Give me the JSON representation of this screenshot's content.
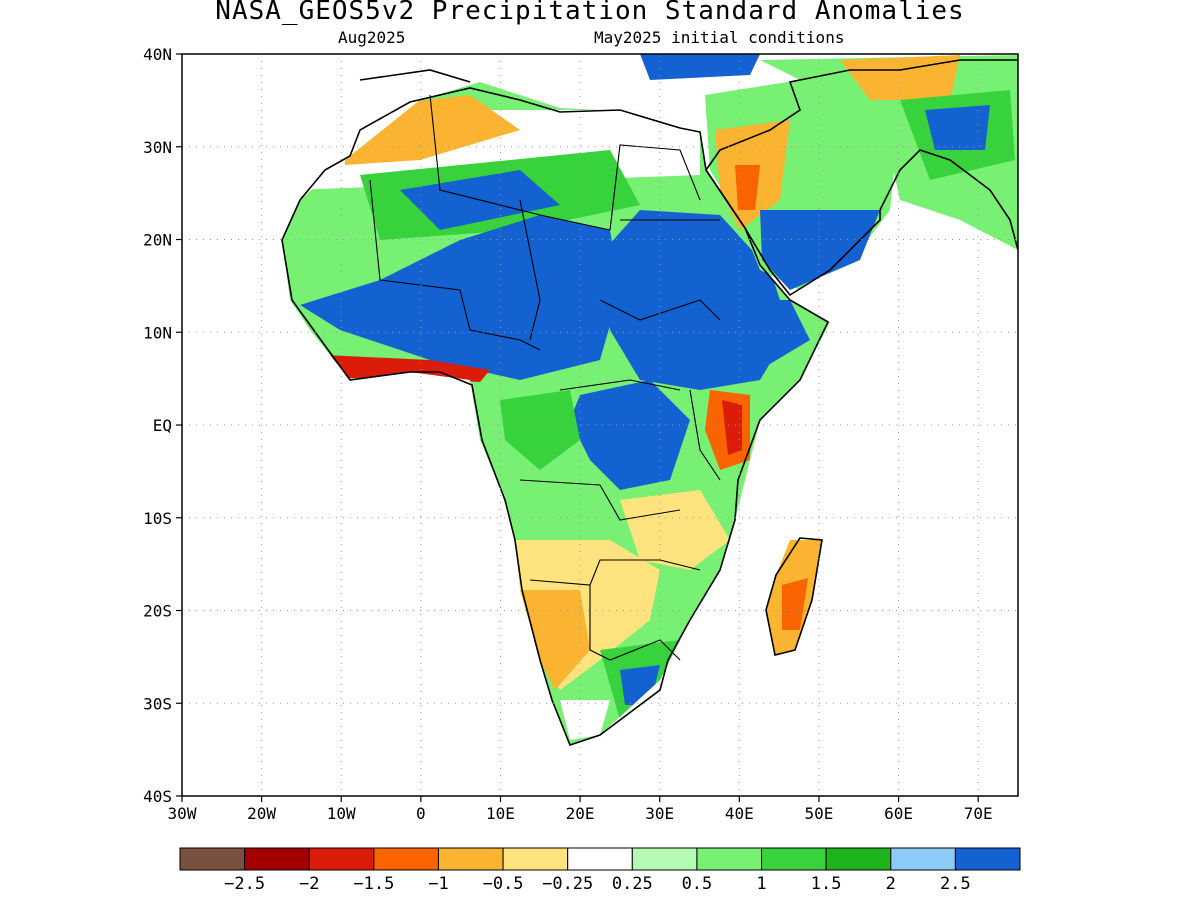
{
  "title": "NASA_GEOS5v2 Precipitation Standard Anomalies",
  "subtitle_left": "Aug2025",
  "subtitle_right": "May2025 initial conditions",
  "map": {
    "lon_range": [
      -30,
      75
    ],
    "lat_range": [
      -40,
      40
    ],
    "lat_labels": [
      "40N",
      "30N",
      "20N",
      "10N",
      "EQ",
      "10S",
      "20S",
      "30S",
      "40S"
    ],
    "lon_labels": [
      "30W",
      "20W",
      "10W",
      "0",
      "10E",
      "20E",
      "30E",
      "40E",
      "50E",
      "60E",
      "70E"
    ],
    "grid_style": "dotted"
  },
  "colorbar": {
    "colors": [
      "#7a5040",
      "#a50000",
      "#dc1c0a",
      "#fa6400",
      "#fab432",
      "#fee37e",
      "#ffffff",
      "#b4fab4",
      "#78f073",
      "#37d23c",
      "#1eb41e",
      "#8ccbf5",
      "#1461d2"
    ],
    "labels": [
      "-2.5",
      "-2",
      "-1.5",
      "-1",
      "-0.5",
      "-0.25",
      "0.25",
      "0.5",
      "1",
      "1.5",
      "2",
      "2.5"
    ]
  },
  "regions": [
    {
      "name": "sahel-wet-west",
      "color": "#1461d2"
    },
    {
      "name": "sahel-wet-east",
      "color": "#1461d2"
    },
    {
      "name": "congo-wet",
      "color": "#1461d2"
    },
    {
      "name": "ethiopia-wet",
      "color": "#1461d2"
    },
    {
      "name": "east-africa-dry",
      "color": "#dc1c0a"
    },
    {
      "name": "southern-africa-dry",
      "color": "#fee37e"
    },
    {
      "name": "arabia-dry",
      "color": "#fab432"
    },
    {
      "name": "madagascar-dry",
      "color": "#fa6400"
    }
  ]
}
